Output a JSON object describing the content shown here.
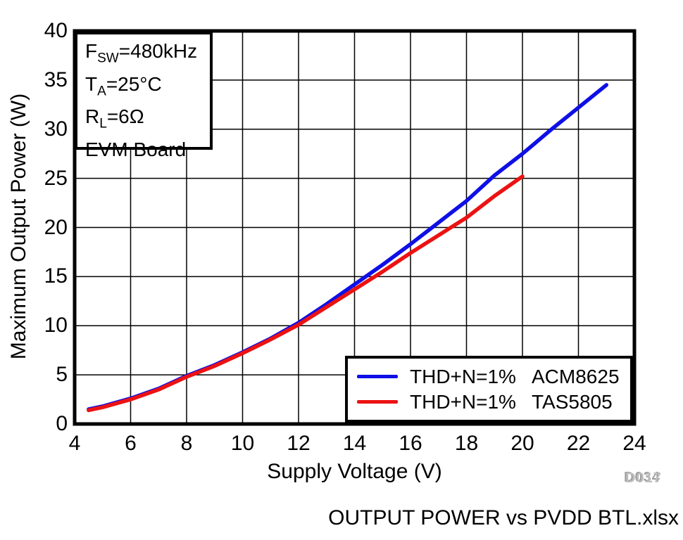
{
  "figure": {
    "caption": "OUTPUT POWER vs PVDD BTL.xlsx",
    "watermark_primary": "D034",
    "watermark_secondary": "D017"
  },
  "annotation": {
    "lines": [
      {
        "pre": "F",
        "sub": "SW",
        "post": "=480kHz"
      },
      {
        "pre": "T",
        "sub": "A",
        "post": "=25°C"
      },
      {
        "pre": "R",
        "sub": "L",
        "post": "=6Ω"
      },
      {
        "pre": "EVM Board",
        "sub": "",
        "post": ""
      }
    ]
  },
  "legend": {
    "entries": [
      {
        "condition": "THD+N=1%",
        "device": "ACM8625"
      },
      {
        "condition": "THD+N=1%",
        "device": "TAS5805"
      }
    ]
  },
  "chart_data": {
    "type": "line",
    "title": "",
    "xlabel": "Supply Voltage (V)",
    "ylabel": "Maximum Output Power (W)",
    "xlim": [
      4,
      24
    ],
    "ylim": [
      0,
      40
    ],
    "xticks": [
      4,
      6,
      8,
      10,
      12,
      14,
      16,
      18,
      20,
      22,
      24
    ],
    "yticks": [
      0,
      5,
      10,
      15,
      20,
      25,
      30,
      35,
      40
    ],
    "grid": true,
    "grid_color": "#000000",
    "frame_color": "#000000",
    "background": "#ffffff",
    "legend_position": "bottom-right",
    "series": [
      {
        "name": "ACM8625",
        "legend_label": "THD+N=1%   ACM8625",
        "color": "#0f0fe6",
        "x": [
          4.5,
          5,
          6,
          7,
          8,
          9,
          10,
          11,
          12,
          13,
          14,
          15,
          16,
          17,
          18,
          19,
          20,
          21,
          22,
          23
        ],
        "y": [
          1.5,
          1.8,
          2.6,
          3.6,
          4.9,
          6.0,
          7.3,
          8.7,
          10.3,
          12.2,
          14.2,
          16.2,
          18.3,
          20.5,
          22.7,
          25.3,
          27.5,
          29.9,
          32.2,
          34.5
        ]
      },
      {
        "name": "TAS5805",
        "legend_label": "THD+N=1%  TAS5805",
        "color": "#ec1212",
        "x": [
          4.5,
          5,
          6,
          7,
          8,
          9,
          10,
          11,
          12,
          13,
          14,
          15,
          16,
          17,
          18,
          19,
          20
        ],
        "y": [
          1.4,
          1.7,
          2.5,
          3.5,
          4.8,
          5.9,
          7.2,
          8.6,
          10.1,
          11.9,
          13.7,
          15.5,
          17.4,
          19.2,
          21.0,
          23.2,
          25.2
        ]
      }
    ]
  }
}
